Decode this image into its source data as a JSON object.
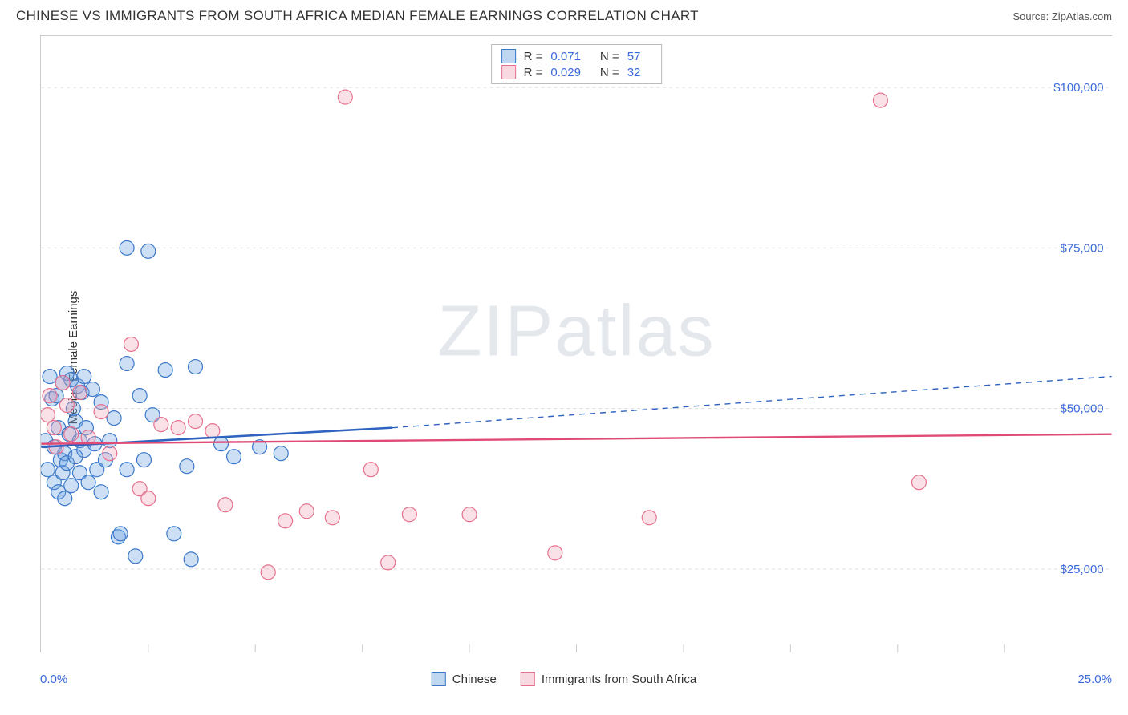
{
  "header": {
    "title": "CHINESE VS IMMIGRANTS FROM SOUTH AFRICA MEDIAN FEMALE EARNINGS CORRELATION CHART",
    "source": "Source: ZipAtlas.com"
  },
  "y_axis": {
    "label": "Median Female Earnings",
    "ticks": [
      {
        "value": 25000,
        "label": "$25,000"
      },
      {
        "value": 50000,
        "label": "$50,000"
      },
      {
        "value": 75000,
        "label": "$75,000"
      },
      {
        "value": 100000,
        "label": "$100,000"
      }
    ],
    "label_color": "#3968d8",
    "label_fontsize": 15
  },
  "x_axis": {
    "min_label": "0.0%",
    "max_label": "25.0%",
    "min": 0.0,
    "max": 25.0,
    "tick_positions": [
      2.5,
      5.0,
      7.5,
      10.0,
      12.5,
      15.0,
      17.5,
      20.0,
      22.5
    ],
    "label_color": "#3968d8"
  },
  "chart": {
    "type": "scatter",
    "xlim": [
      0,
      25
    ],
    "ylim": [
      12000,
      108000
    ],
    "grid_color": "#dcdcdc",
    "background_color": "#ffffff",
    "marker_radius": 9,
    "marker_stroke_width": 1.2,
    "marker_fill_opacity": 0.35
  },
  "watermark": {
    "text_a": "ZIP",
    "text_b": "atlas"
  },
  "series": [
    {
      "id": "chinese",
      "label": "Chinese",
      "color": "#6fa3e0",
      "stroke": "#3a78c9",
      "r_value": "0.071",
      "n_value": "57",
      "trend": {
        "solid": {
          "x1": 0.0,
          "y1": 44000,
          "x2": 8.2,
          "y2": 47000
        },
        "dashed": {
          "x1": 8.2,
          "y1": 47000,
          "x2": 25.0,
          "y2": 55000
        },
        "color": "#2f63c0",
        "width_solid": 2.6,
        "width_dashed": 1.4
      },
      "points": [
        {
          "x": 0.1,
          "y": 45000
        },
        {
          "x": 0.15,
          "y": 40500
        },
        {
          "x": 0.2,
          "y": 55000
        },
        {
          "x": 0.25,
          "y": 51500
        },
        {
          "x": 0.3,
          "y": 38500
        },
        {
          "x": 0.3,
          "y": 44000
        },
        {
          "x": 0.35,
          "y": 52000
        },
        {
          "x": 0.4,
          "y": 37000
        },
        {
          "x": 0.4,
          "y": 47000
        },
        {
          "x": 0.45,
          "y": 42000
        },
        {
          "x": 0.5,
          "y": 40000
        },
        {
          "x": 0.5,
          "y": 54000
        },
        {
          "x": 0.55,
          "y": 43000
        },
        {
          "x": 0.55,
          "y": 36000
        },
        {
          "x": 0.6,
          "y": 55500
        },
        {
          "x": 0.6,
          "y": 41500
        },
        {
          "x": 0.65,
          "y": 46000
        },
        {
          "x": 0.7,
          "y": 54500
        },
        {
          "x": 0.7,
          "y": 38000
        },
        {
          "x": 0.75,
          "y": 50000
        },
        {
          "x": 0.8,
          "y": 42500
        },
        {
          "x": 0.8,
          "y": 48000
        },
        {
          "x": 0.85,
          "y": 53500
        },
        {
          "x": 0.9,
          "y": 45000
        },
        {
          "x": 0.9,
          "y": 40000
        },
        {
          "x": 0.95,
          "y": 52500
        },
        {
          "x": 1.0,
          "y": 55000
        },
        {
          "x": 1.0,
          "y": 43500
        },
        {
          "x": 1.05,
          "y": 47000
        },
        {
          "x": 1.1,
          "y": 38500
        },
        {
          "x": 1.2,
          "y": 53000
        },
        {
          "x": 1.25,
          "y": 44500
        },
        {
          "x": 1.3,
          "y": 40500
        },
        {
          "x": 1.4,
          "y": 37000
        },
        {
          "x": 1.4,
          "y": 51000
        },
        {
          "x": 1.5,
          "y": 42000
        },
        {
          "x": 1.6,
          "y": 45000
        },
        {
          "x": 1.7,
          "y": 48500
        },
        {
          "x": 1.8,
          "y": 30000
        },
        {
          "x": 1.85,
          "y": 30500
        },
        {
          "x": 2.0,
          "y": 75000
        },
        {
          "x": 2.0,
          "y": 57000
        },
        {
          "x": 2.0,
          "y": 40500
        },
        {
          "x": 2.2,
          "y": 27000
        },
        {
          "x": 2.3,
          "y": 52000
        },
        {
          "x": 2.4,
          "y": 42000
        },
        {
          "x": 2.5,
          "y": 74500
        },
        {
          "x": 2.6,
          "y": 49000
        },
        {
          "x": 2.9,
          "y": 56000
        },
        {
          "x": 3.1,
          "y": 30500
        },
        {
          "x": 3.4,
          "y": 41000
        },
        {
          "x": 3.5,
          "y": 26500
        },
        {
          "x": 3.6,
          "y": 56500
        },
        {
          "x": 4.2,
          "y": 44500
        },
        {
          "x": 4.5,
          "y": 42500
        },
        {
          "x": 5.1,
          "y": 44000
        },
        {
          "x": 5.6,
          "y": 43000
        }
      ]
    },
    {
      "id": "south_africa",
      "label": "Immigrants from South Africa",
      "color": "#f0a8ba",
      "stroke": "#e5718f",
      "r_value": "0.029",
      "n_value": "32",
      "trend": {
        "solid": {
          "x1": 0.0,
          "y1": 44500,
          "x2": 25.0,
          "y2": 46000
        },
        "color": "#e04b76",
        "width_solid": 2.4
      },
      "points": [
        {
          "x": 0.15,
          "y": 49000
        },
        {
          "x": 0.2,
          "y": 52000
        },
        {
          "x": 0.3,
          "y": 47000
        },
        {
          "x": 0.35,
          "y": 44000
        },
        {
          "x": 0.5,
          "y": 54000
        },
        {
          "x": 0.6,
          "y": 50500
        },
        {
          "x": 0.7,
          "y": 46000
        },
        {
          "x": 0.9,
          "y": 52500
        },
        {
          "x": 1.1,
          "y": 45500
        },
        {
          "x": 1.4,
          "y": 49500
        },
        {
          "x": 1.6,
          "y": 43000
        },
        {
          "x": 2.1,
          "y": 60000
        },
        {
          "x": 2.3,
          "y": 37500
        },
        {
          "x": 2.5,
          "y": 36000
        },
        {
          "x": 2.8,
          "y": 47500
        },
        {
          "x": 3.2,
          "y": 47000
        },
        {
          "x": 3.6,
          "y": 48000
        },
        {
          "x": 4.0,
          "y": 46500
        },
        {
          "x": 4.3,
          "y": 35000
        },
        {
          "x": 5.3,
          "y": 24500
        },
        {
          "x": 5.7,
          "y": 32500
        },
        {
          "x": 6.2,
          "y": 34000
        },
        {
          "x": 6.8,
          "y": 33000
        },
        {
          "x": 7.1,
          "y": 98500
        },
        {
          "x": 7.7,
          "y": 40500
        },
        {
          "x": 8.1,
          "y": 26000
        },
        {
          "x": 8.6,
          "y": 33500
        },
        {
          "x": 10.0,
          "y": 33500
        },
        {
          "x": 12.0,
          "y": 27500
        },
        {
          "x": 14.2,
          "y": 33000
        },
        {
          "x": 19.6,
          "y": 98000
        },
        {
          "x": 20.5,
          "y": 38500
        }
      ]
    }
  ],
  "legend": {
    "r_prefix": "R  =",
    "n_prefix": "N  ="
  }
}
